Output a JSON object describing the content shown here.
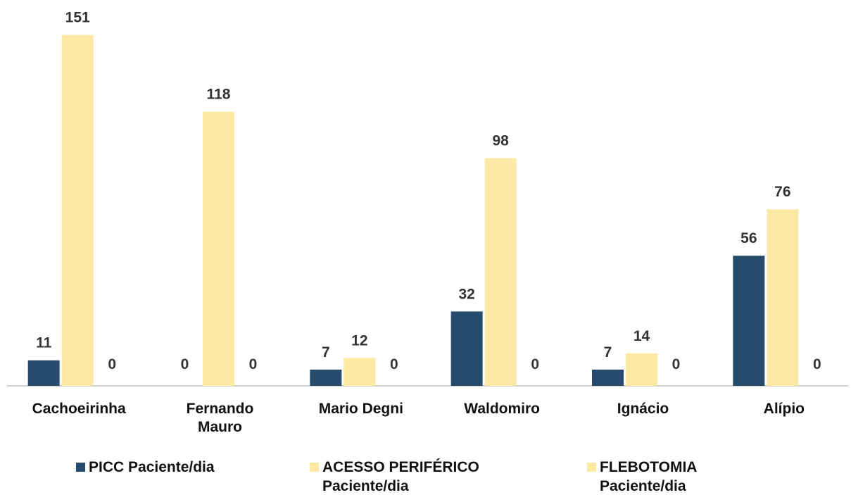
{
  "chart_data": {
    "type": "bar",
    "categories": [
      "Cachoeirinha",
      "Fernando Mauro",
      "Mario Degni",
      "Waldomiro",
      "Ignácio",
      "Alípio"
    ],
    "series": [
      {
        "name": "PICC Paciente/dia",
        "color": "#264b6c",
        "values": [
          11,
          0,
          7,
          32,
          7,
          56
        ]
      },
      {
        "name": "ACESSO PERIFÉRICO Paciente/dia",
        "color": "#fde9a3",
        "values": [
          151,
          118,
          12,
          98,
          14,
          76
        ]
      },
      {
        "name": "FLEBOTOMIA Paciente/dia",
        "color": "#fde9a3",
        "values": [
          0,
          0,
          0,
          0,
          0,
          0
        ]
      }
    ],
    "ylim": [
      0,
      160
    ]
  }
}
